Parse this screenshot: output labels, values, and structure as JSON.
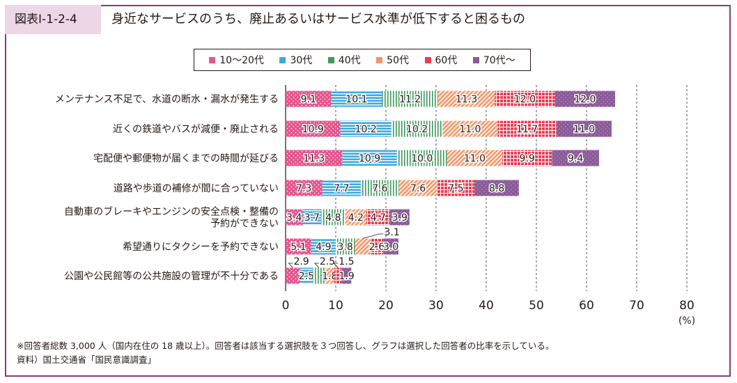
{
  "figure": {
    "label": "図表Ⅰ-1-2-4",
    "title": "身近なサービスのうち、廃止あるいはサービス水準が低下すると困るもの"
  },
  "notes": [
    "※回答者総数 3,000 人（国内在住の 18 歳以上）。回答者は該当する選択肢を３つ回答し、グラフは選択した回答者の比率を示している。",
    "資料）国土交通省「国民意識調査」"
  ],
  "colors": {
    "s1": "#e4568e",
    "s2": "#3fa9dd",
    "s3": "#3c9a5a",
    "s4": "#f29467",
    "s5": "#e93f55",
    "s6": "#8a5a98",
    "frame": "#8a3a72",
    "label_bg": "#ecd7e6"
  },
  "chart_data": {
    "type": "bar",
    "orientation": "horizontal",
    "stacked": true,
    "categories": [
      "メンテナンス不足で、水道の断水・漏水が発生する",
      "近くの鉄道やバスが減便・廃止される",
      "宅配便や郵便物が届くまでの時間が延びる",
      "道路や歩道の補修が間に合っていない",
      "自動車のブレーキやエンジンの安全点検・整備の予約ができない",
      "希望通りにタクシーを予約できない",
      "公園や公民館等の公共施設の管理が不十分である"
    ],
    "category_lines": [
      [
        "メンテナンス不足で、水道の断水・漏水が発生する"
      ],
      [
        "近くの鉄道やバスが減便・廃止される"
      ],
      [
        "宅配便や郵便物が届くまでの時間が延びる"
      ],
      [
        "道路や歩道の補修が間に合っていない"
      ],
      [
        "自動車のブレーキやエンジンの安全点検・整備の",
        "予約ができない"
      ],
      [
        "希望通りにタクシーを予約できない"
      ],
      [
        "公園や公民館等の公共施設の管理が不十分である"
      ]
    ],
    "series": [
      {
        "name": "10〜20代",
        "values": [
          9.1,
          10.9,
          11.3,
          7.3,
          3.4,
          5.1,
          2.9
        ]
      },
      {
        "name": "30代",
        "values": [
          10.1,
          10.2,
          10.9,
          7.7,
          3.7,
          4.9,
          2.5
        ]
      },
      {
        "name": "40代",
        "values": [
          11.2,
          10.2,
          10.0,
          7.6,
          4.8,
          3.8,
          2.5
        ]
      },
      {
        "name": "50代",
        "values": [
          11.3,
          11.0,
          11.0,
          7.6,
          4.2,
          3.1,
          1.8
        ]
      },
      {
        "name": "60代",
        "values": [
          12.0,
          11.7,
          9.9,
          7.5,
          4.7,
          2.6,
          1.5
        ]
      },
      {
        "name": "70代〜",
        "values": [
          12.0,
          11.0,
          9.4,
          8.8,
          3.9,
          3.0,
          1.9
        ]
      }
    ],
    "xlim": [
      0,
      80
    ],
    "xticks": [
      0,
      10,
      20,
      30,
      40,
      50,
      60,
      70,
      80
    ],
    "xunit": "(%)",
    "grid": true,
    "legend_position": "top"
  }
}
